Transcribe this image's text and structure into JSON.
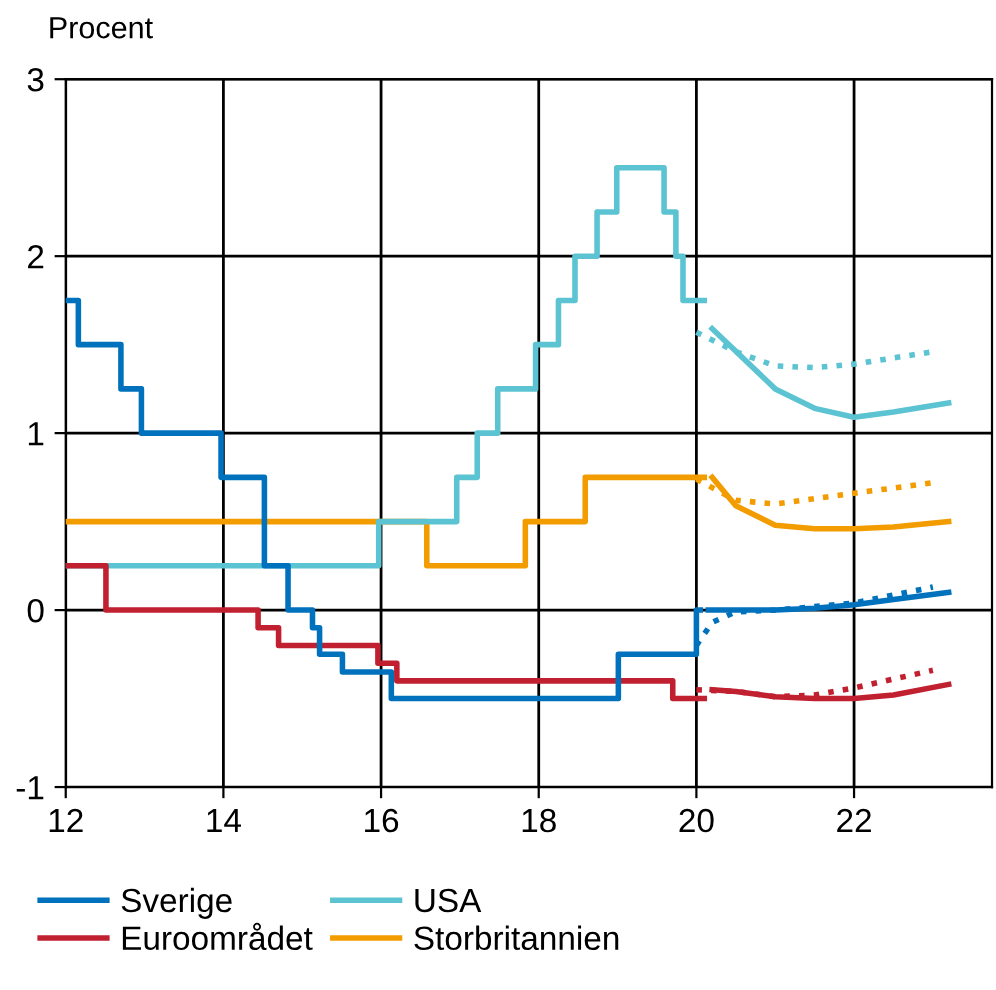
{
  "chart_data": {
    "type": "step",
    "ylabel": "Procent",
    "xlim": [
      12,
      23.75
    ],
    "ylim": [
      -1,
      3
    ],
    "xticks": [
      12,
      14,
      16,
      18,
      20,
      22
    ],
    "yticks": [
      -1,
      0,
      1,
      2,
      3
    ],
    "grid": true,
    "legend": "bottom",
    "series": [
      {
        "name": "Sverige",
        "color": "#0071bc",
        "x": [
          12,
          12.16,
          12.7,
          12.96,
          13.97,
          14.52,
          14.82,
          15.13,
          15.22,
          15.51,
          16.13,
          19.01,
          20.0,
          20.05
        ],
        "values": [
          1.75,
          1.5,
          1.25,
          1.0,
          0.75,
          0.25,
          0,
          -0.1,
          -0.25,
          -0.35,
          -0.5,
          -0.25,
          0,
          0
        ]
      },
      {
        "name": "Euroområdet",
        "color": "#c0202f",
        "x": [
          12,
          12.51,
          14.44,
          14.7,
          15.96,
          16.2,
          19.7,
          20.1
        ],
        "values": [
          0.25,
          0,
          -0.1,
          -0.2,
          -0.3,
          -0.4,
          -0.5,
          -0.5
        ]
      },
      {
        "name": "USA",
        "color": "#5bc3d1",
        "x": [
          12,
          15.97,
          16.96,
          17.22,
          17.48,
          17.96,
          18.25,
          18.46,
          18.74,
          18.99,
          19.59,
          19.74,
          19.83,
          20.1
        ],
        "values": [
          0.25,
          0.5,
          0.75,
          1.0,
          1.25,
          1.5,
          1.75,
          2.0,
          2.25,
          2.5,
          2.25,
          2.0,
          1.75,
          1.75
        ]
      },
      {
        "name": "Storbritannien",
        "color": "#f39c00",
        "x": [
          12,
          16.58,
          17.83,
          18.59,
          20.1
        ],
        "values": [
          0.5,
          0.25,
          0.5,
          0.75,
          0.75
        ]
      },
      {
        "color": "#0071bc",
        "type": "line",
        "line_style": "solid",
        "x": [
          20.15,
          21,
          21.5,
          22,
          22.5,
          23.2
        ],
        "values": [
          0,
          0,
          0.01,
          0.03,
          0.06,
          0.1
        ]
      },
      {
        "color": "#0071bc",
        "type": "line",
        "line_style": "dotted",
        "x": [
          20.0,
          20.2,
          20.5,
          21,
          22,
          23
        ],
        "values": [
          -0.2,
          -0.07,
          -0.01,
          0,
          0.04,
          0.13
        ]
      },
      {
        "color": "#c0202f",
        "type": "line",
        "line_style": "solid",
        "x": [
          20.2,
          20.5,
          21,
          21.5,
          22,
          22.5,
          23.2
        ],
        "values": [
          -0.45,
          -0.46,
          -0.49,
          -0.5,
          -0.5,
          -0.48,
          -0.42
        ]
      },
      {
        "color": "#c0202f",
        "type": "line",
        "line_style": "dotted",
        "x": [
          20.0,
          20.5,
          21,
          21.5,
          22,
          23
        ],
        "values": [
          -0.45,
          -0.46,
          -0.49,
          -0.48,
          -0.44,
          -0.34
        ]
      },
      {
        "color": "#5bc3d1",
        "type": "line",
        "line_style": "solid",
        "x": [
          20.2,
          21,
          21.5,
          22,
          22.5,
          23.2
        ],
        "values": [
          1.59,
          1.25,
          1.14,
          1.09,
          1.12,
          1.17
        ]
      },
      {
        "color": "#5bc3d1",
        "type": "line",
        "line_style": "dotted",
        "x": [
          20.0,
          20.5,
          21,
          21.5,
          22,
          23
        ],
        "values": [
          1.57,
          1.46,
          1.38,
          1.37,
          1.39,
          1.46
        ]
      },
      {
        "color": "#f39c00",
        "type": "line",
        "line_style": "solid",
        "x": [
          20.2,
          20.5,
          21,
          21.5,
          22,
          22.5,
          23.2
        ],
        "values": [
          0.75,
          0.59,
          0.48,
          0.46,
          0.46,
          0.47,
          0.5
        ]
      },
      {
        "color": "#f39c00",
        "type": "line",
        "line_style": "dotted",
        "x": [
          20.0,
          20.5,
          21,
          21.5,
          22,
          23
        ],
        "values": [
          0.74,
          0.62,
          0.6,
          0.63,
          0.66,
          0.72
        ]
      }
    ]
  }
}
